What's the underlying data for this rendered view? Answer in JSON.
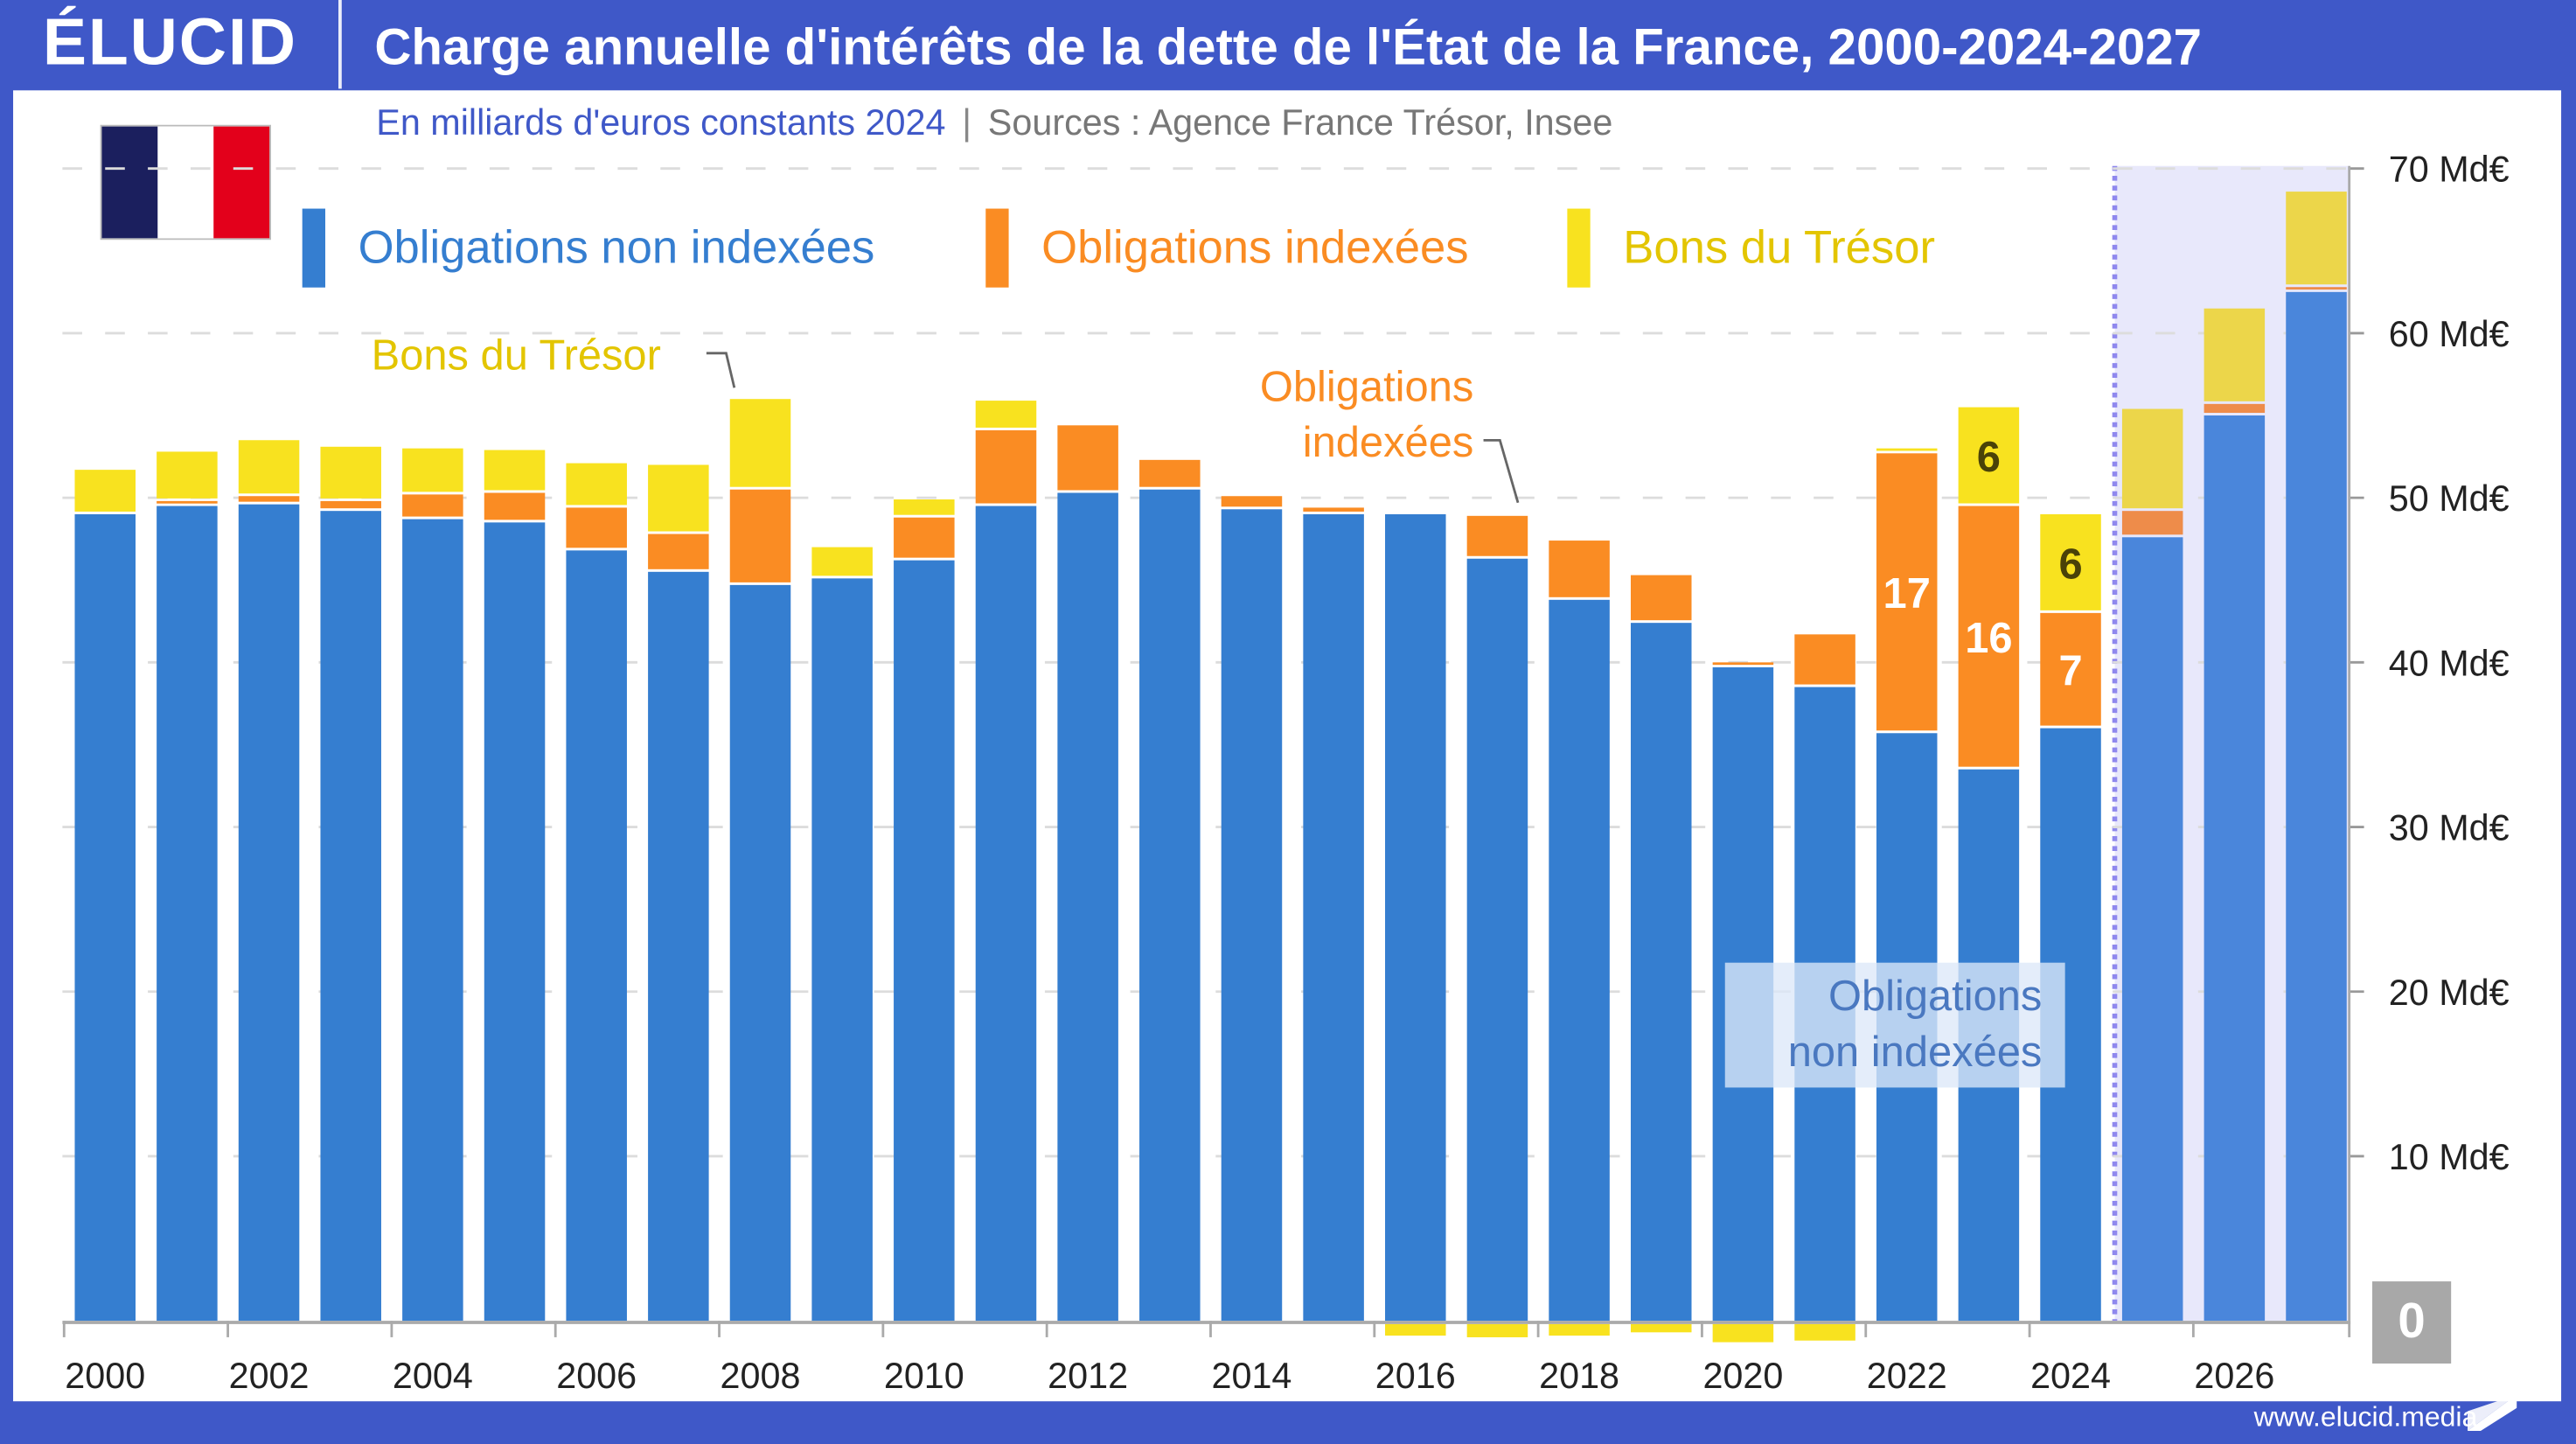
{
  "header": {
    "logo": "ÉLUCID",
    "title": "Charge annuelle d'intérêts de la dette de l'État de la France, 2000-2024-2027"
  },
  "subtitle": {
    "unit": "En milliards d'euros constants 2024",
    "separator": "|",
    "sources": "Sources : Agence France Trésor, Insee"
  },
  "flag": {
    "colors": [
      "#1b1f5e",
      "#ffffff",
      "#e3001b"
    ]
  },
  "legend": [
    {
      "label": "Obligations non indexées",
      "color": "#357ed0"
    },
    {
      "label": "Obligations indexées",
      "color": "#fa8c23"
    },
    {
      "label": "Bons du Trésor",
      "color": "#e3c500",
      "swatch": "#f8e21f"
    }
  ],
  "annotations": {
    "bons_du_tresor": "Bons du Trésor",
    "obligations_indexees_line1": "Obligations",
    "obligations_indexees_line2": "indexées",
    "non_indexees_line1": "Obligations",
    "non_indexees_line2": "non indexées"
  },
  "zero_badge": "0",
  "footer": {
    "url": "www.elucid.media"
  },
  "chart_data": {
    "type": "bar",
    "stacked": true,
    "title": "Charge annuelle d'intérêts de la dette de l'État de la France, 2000-2024-2027",
    "subtitle": "En milliards d'euros constants 2024",
    "xlabel": "",
    "ylabel": "",
    "ylim": [
      -1.5,
      70
    ],
    "y_ticks": [
      10,
      20,
      30,
      40,
      50,
      60,
      70
    ],
    "y_tick_format": "{v} Md€",
    "y_axis_side": "right",
    "x_tick_labels": [
      "2000",
      "2002",
      "2004",
      "2006",
      "2008",
      "2010",
      "2012",
      "2014",
      "2016",
      "2018",
      "2020",
      "2022",
      "2024",
      "2026"
    ],
    "grid": true,
    "legend_position": "top-left",
    "projection_from": 2025,
    "categories": [
      2000,
      2001,
      2002,
      2003,
      2004,
      2005,
      2006,
      2007,
      2008,
      2009,
      2010,
      2011,
      2012,
      2013,
      2014,
      2015,
      2016,
      2017,
      2018,
      2019,
      2020,
      2021,
      2022,
      2023,
      2024,
      2025,
      2026,
      2027
    ],
    "series": [
      {
        "name": "Obligations non indexées",
        "color": "#357ed0",
        "values": [
          49.0,
          49.5,
          49.6,
          49.2,
          48.7,
          48.5,
          46.8,
          45.5,
          44.7,
          45.1,
          46.2,
          49.5,
          50.3,
          50.5,
          49.3,
          49.0,
          49.0,
          46.3,
          43.8,
          42.4,
          39.7,
          38.5,
          35.7,
          33.5,
          36.0,
          47.6,
          55.0,
          62.5
        ]
      },
      {
        "name": "Obligations indexées",
        "color": "#fa8c23",
        "values": [
          0.0,
          0.3,
          0.5,
          0.6,
          1.5,
          1.8,
          2.6,
          2.3,
          5.8,
          0.0,
          2.6,
          4.6,
          4.1,
          1.8,
          0.8,
          0.4,
          0.0,
          2.6,
          3.6,
          2.9,
          0.3,
          3.2,
          17,
          16,
          7,
          1.6,
          0.7,
          0.3
        ]
      },
      {
        "name": "Bons du Trésor",
        "color": "#f8e21f",
        "values": [
          2.7,
          3.0,
          3.4,
          3.3,
          2.8,
          2.6,
          2.7,
          4.2,
          5.5,
          1.9,
          1.1,
          1.8,
          0.0,
          0.0,
          0.0,
          0.0,
          -0.7,
          -0.8,
          -0.7,
          -0.5,
          -1.1,
          -1.0,
          0.3,
          6,
          6,
          6.2,
          5.8,
          5.8
        ]
      }
    ],
    "data_labels": [
      {
        "year": 2022,
        "series": "Obligations indexées",
        "text": "17"
      },
      {
        "year": 2023,
        "series": "Obligations indexées",
        "text": "16"
      },
      {
        "year": 2023,
        "series": "Bons du Trésor",
        "text": "6"
      },
      {
        "year": 2024,
        "series": "Obligations indexées",
        "text": "7"
      },
      {
        "year": 2024,
        "series": "Bons du Trésor",
        "text": "6"
      }
    ]
  }
}
